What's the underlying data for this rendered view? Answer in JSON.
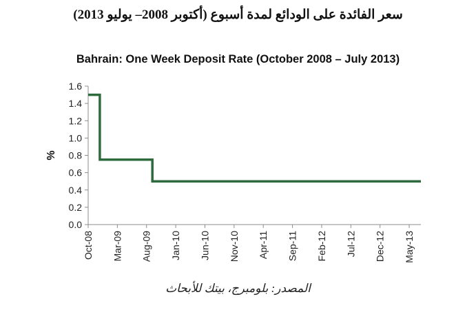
{
  "header": {
    "arabic_title": "سعر الفائدة على الودائع لمدة أسبوع (أكتوبر 2008– يوليو 2013)"
  },
  "footer": {
    "source": "المصدر: بلومبرج، بيتك للأبحاث"
  },
  "chart_data": {
    "type": "line",
    "title": "Bahrain: One Week Deposit Rate (October 2008 – July 2013)",
    "xlabel": "",
    "ylabel": "%",
    "ylim": [
      0,
      1.6
    ],
    "yticks": [
      "0.0",
      "0.2",
      "0.4",
      "0.6",
      "0.8",
      "1.0",
      "1.2",
      "1.4",
      "1.6"
    ],
    "xlim": [
      "2008-10",
      "2013-07"
    ],
    "xtick_labels": [
      "Oct-08",
      "Mar-09",
      "Aug-09",
      "Jan-10",
      "Jun-10",
      "Nov-10",
      "Apr-11",
      "Sep-11",
      "Feb-12",
      "Jul-12",
      "Dec-12",
      "May-13"
    ],
    "grid": false,
    "line_color": "#2e6b3c",
    "series": [
      {
        "name": "",
        "step": true,
        "x": [
          "2008-10",
          "2008-12",
          "2008-12",
          "2009-09",
          "2009-09",
          "2013-07"
        ],
        "y": [
          1.5,
          1.5,
          0.75,
          0.75,
          0.5,
          0.5
        ]
      }
    ]
  }
}
